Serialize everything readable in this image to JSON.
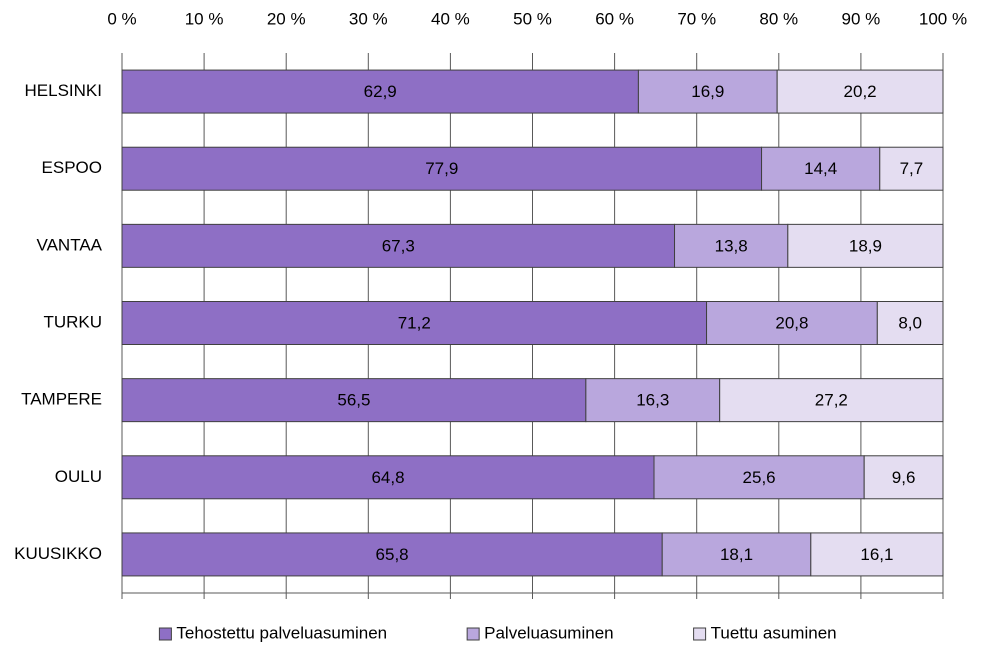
{
  "chart_data": {
    "type": "stacked-barh",
    "categories": [
      "HELSINKI",
      "ESPOO",
      "VANTAA",
      "TURKU",
      "TAMPERE",
      "OULU",
      "KUUSIKKO"
    ],
    "series": [
      {
        "name": "Tehostettu palveluasuminen",
        "color": "#8e6fc5",
        "values": [
          62.9,
          77.9,
          67.3,
          71.2,
          56.5,
          64.8,
          65.8
        ],
        "value_labels": [
          "62,9",
          "77,9",
          "67,3",
          "71,2",
          "56,5",
          "64,8",
          "65,8"
        ]
      },
      {
        "name": "Palveluasuminen",
        "color": "#b9a7dd",
        "values": [
          16.9,
          14.4,
          13.8,
          20.8,
          16.3,
          25.6,
          18.1
        ],
        "value_labels": [
          "16,9",
          "14,4",
          "13,8",
          "20,8",
          "16,3",
          "25,6",
          "18,1"
        ]
      },
      {
        "name": "Tuettu asuminen",
        "color": "#e4ddf1",
        "values": [
          20.2,
          7.7,
          18.9,
          8.0,
          27.2,
          9.6,
          16.1
        ],
        "value_labels": [
          "20,2",
          "7,7",
          "18,9",
          "8,0",
          "27,2",
          "9,6",
          "16,1"
        ]
      }
    ],
    "xlim": [
      0,
      100
    ],
    "xticks": [
      {
        "value": 0,
        "label": "0 %"
      },
      {
        "value": 10,
        "label": "10 %"
      },
      {
        "value": 20,
        "label": "20 %"
      },
      {
        "value": 30,
        "label": "30 %"
      },
      {
        "value": 40,
        "label": "40 %"
      },
      {
        "value": 50,
        "label": "50 %"
      },
      {
        "value": 60,
        "label": "60 %"
      },
      {
        "value": 70,
        "label": "70 %"
      },
      {
        "value": 80,
        "label": "80 %"
      },
      {
        "value": 90,
        "label": "90 %"
      },
      {
        "value": 100,
        "label": "100 %"
      }
    ],
    "grid": true,
    "legend": "bottom"
  }
}
